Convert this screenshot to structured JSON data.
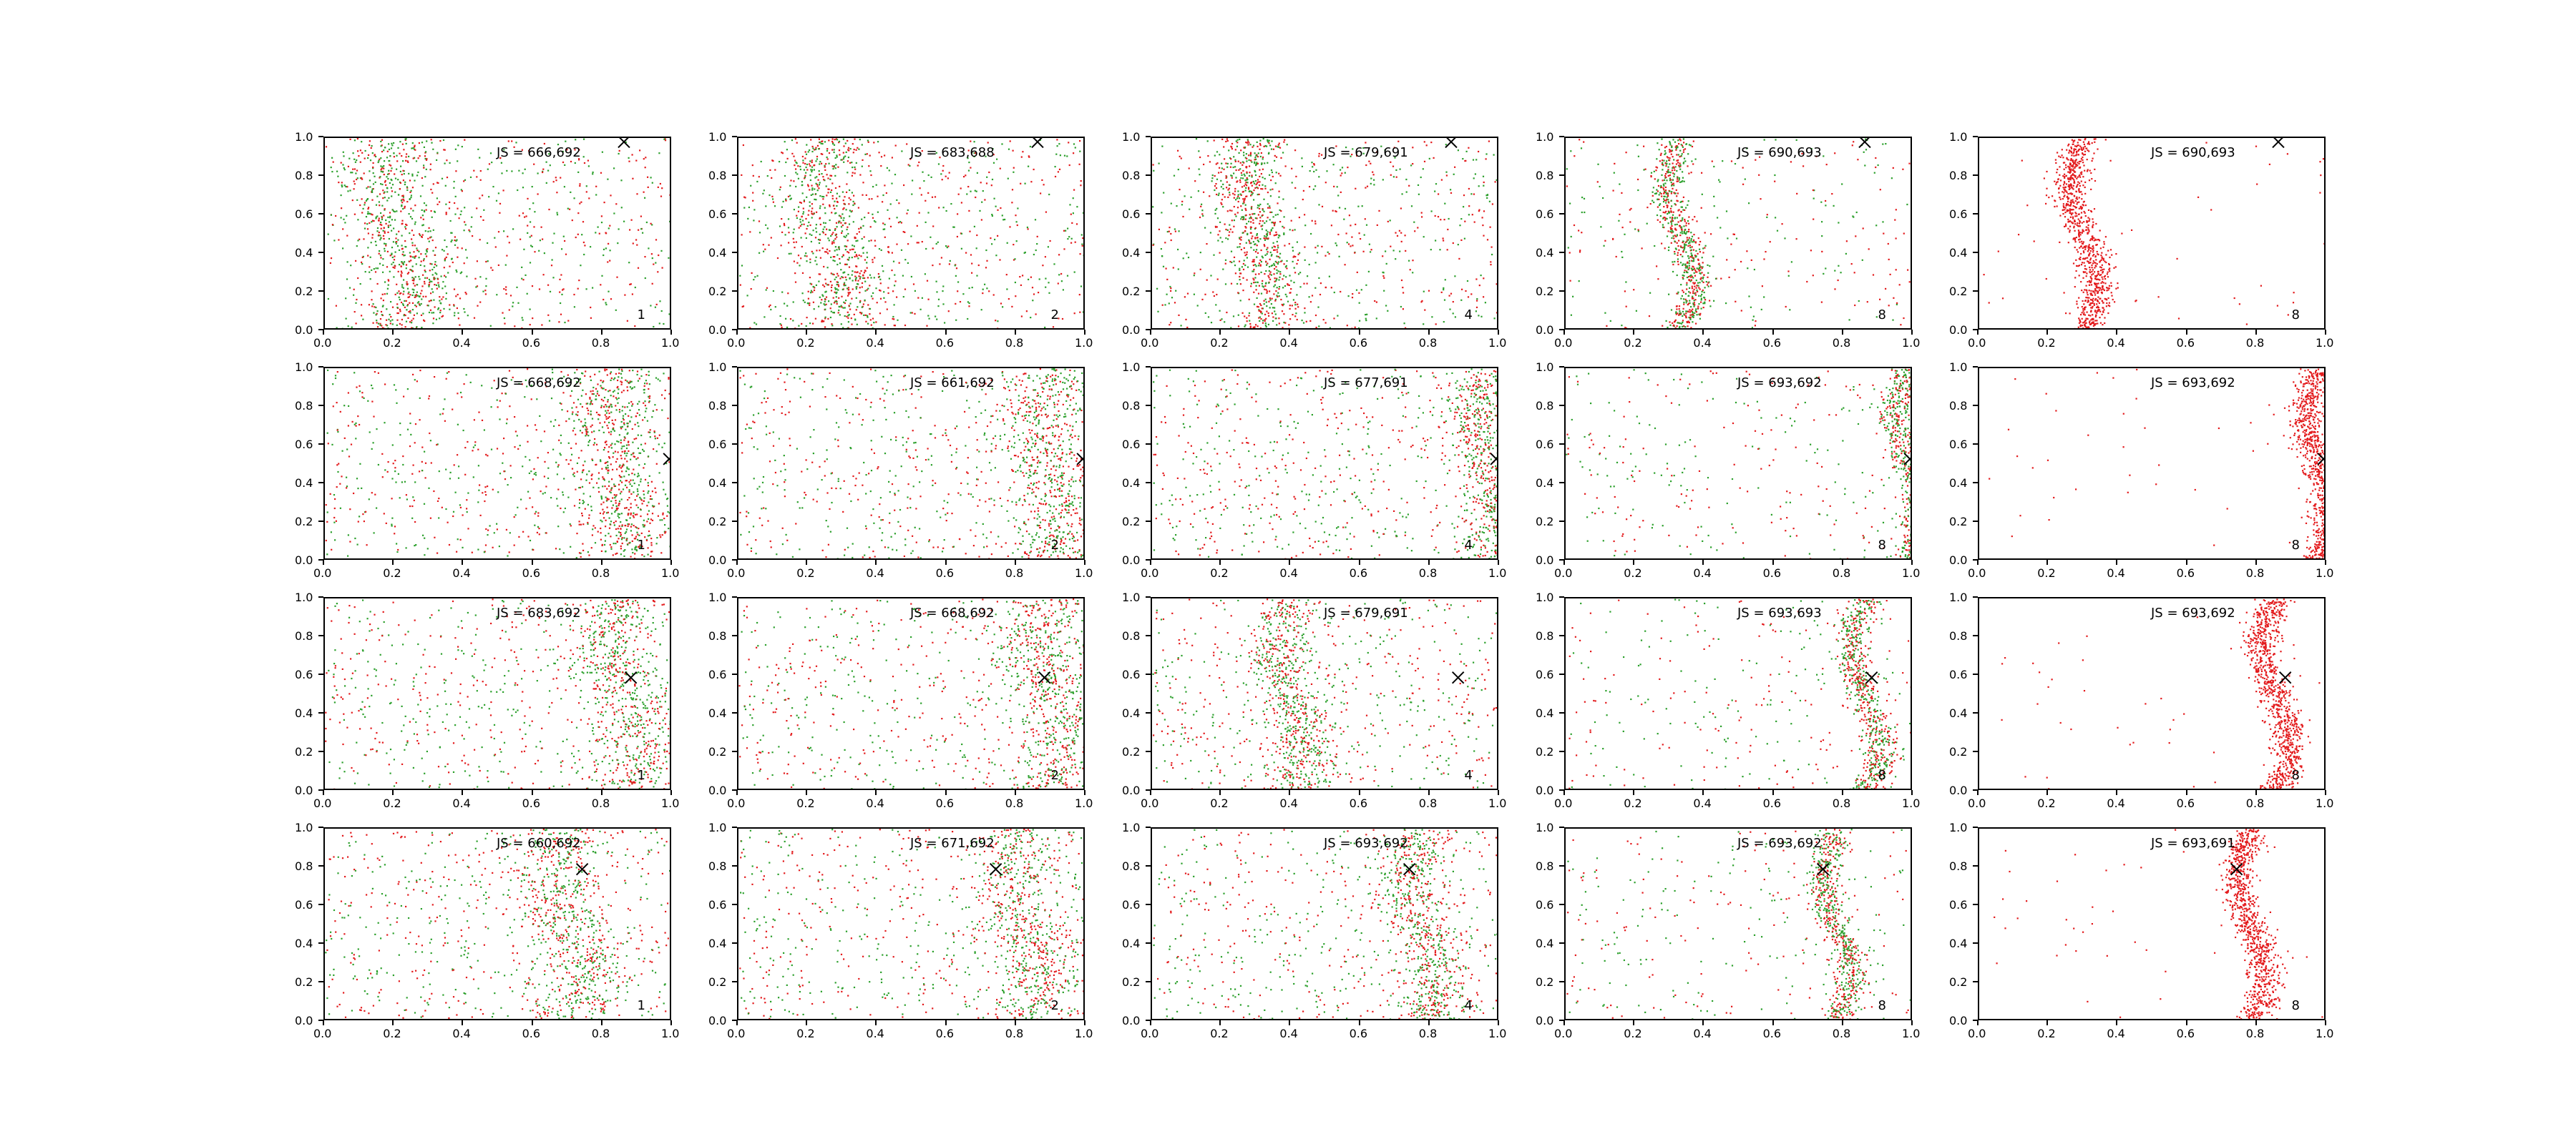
{
  "chart_data": {
    "type": "scatter",
    "layout": {
      "rows": 4,
      "cols": 5
    },
    "series_colors": {
      "red": "#e31a1c",
      "green": "#2ca02c"
    },
    "marker_color": "#000000",
    "xlim": [
      0,
      1
    ],
    "ylim": [
      0,
      1
    ],
    "xticks": [
      "0.0",
      "0.2",
      "0.4",
      "0.6",
      "0.8",
      "1.0"
    ],
    "yticks": [
      "0.0",
      "0.2",
      "0.4",
      "0.6",
      "0.8",
      "1.0"
    ],
    "col_labels": [
      "1",
      "2",
      "4",
      "8",
      "8"
    ],
    "rows": [
      {
        "marker": [
          0.86,
          0.98
        ],
        "js": [
          "JS = 666,692",
          "JS = 683,688",
          "JS = 679,691",
          "JS = 690,693",
          "JS = 690,693"
        ],
        "curve": {
          "center": 0.22,
          "amp": 0.04
        },
        "curve_cols": [
          0.22,
          0.27,
          0.3,
          0.33,
          0.3
        ]
      },
      {
        "marker": [
          0.99,
          0.53
        ],
        "js": [
          "JS = 668,692",
          "JS = 661,692",
          "JS = 677,691",
          "JS = 693,692",
          "JS = 693,692"
        ],
        "curve": {
          "center": 0.96,
          "amp": 0.03
        },
        "curve_cols": [
          0.85,
          0.9,
          0.96,
          0.98,
          0.97
        ]
      },
      {
        "marker": [
          0.88,
          0.59
        ],
        "js": [
          "JS = 683,692",
          "JS = 668,692",
          "JS = 679,691",
          "JS = 693,693",
          "JS = 693,692"
        ],
        "curve": {
          "center": 0.86,
          "amp": 0.04
        },
        "curve_cols": [
          0.86,
          0.9,
          0.4,
          0.86,
          0.85
        ]
      },
      {
        "marker": [
          0.74,
          0.79
        ],
        "js": [
          "JS = 660,692",
          "JS = 671,692",
          "JS = 693,692",
          "JS = 693,692",
          "JS = 693,691"
        ],
        "curve": {
          "center": 0.78,
          "amp": 0.04
        },
        "curve_cols": [
          0.7,
          0.82,
          0.78,
          0.78,
          0.78
        ]
      }
    ]
  }
}
